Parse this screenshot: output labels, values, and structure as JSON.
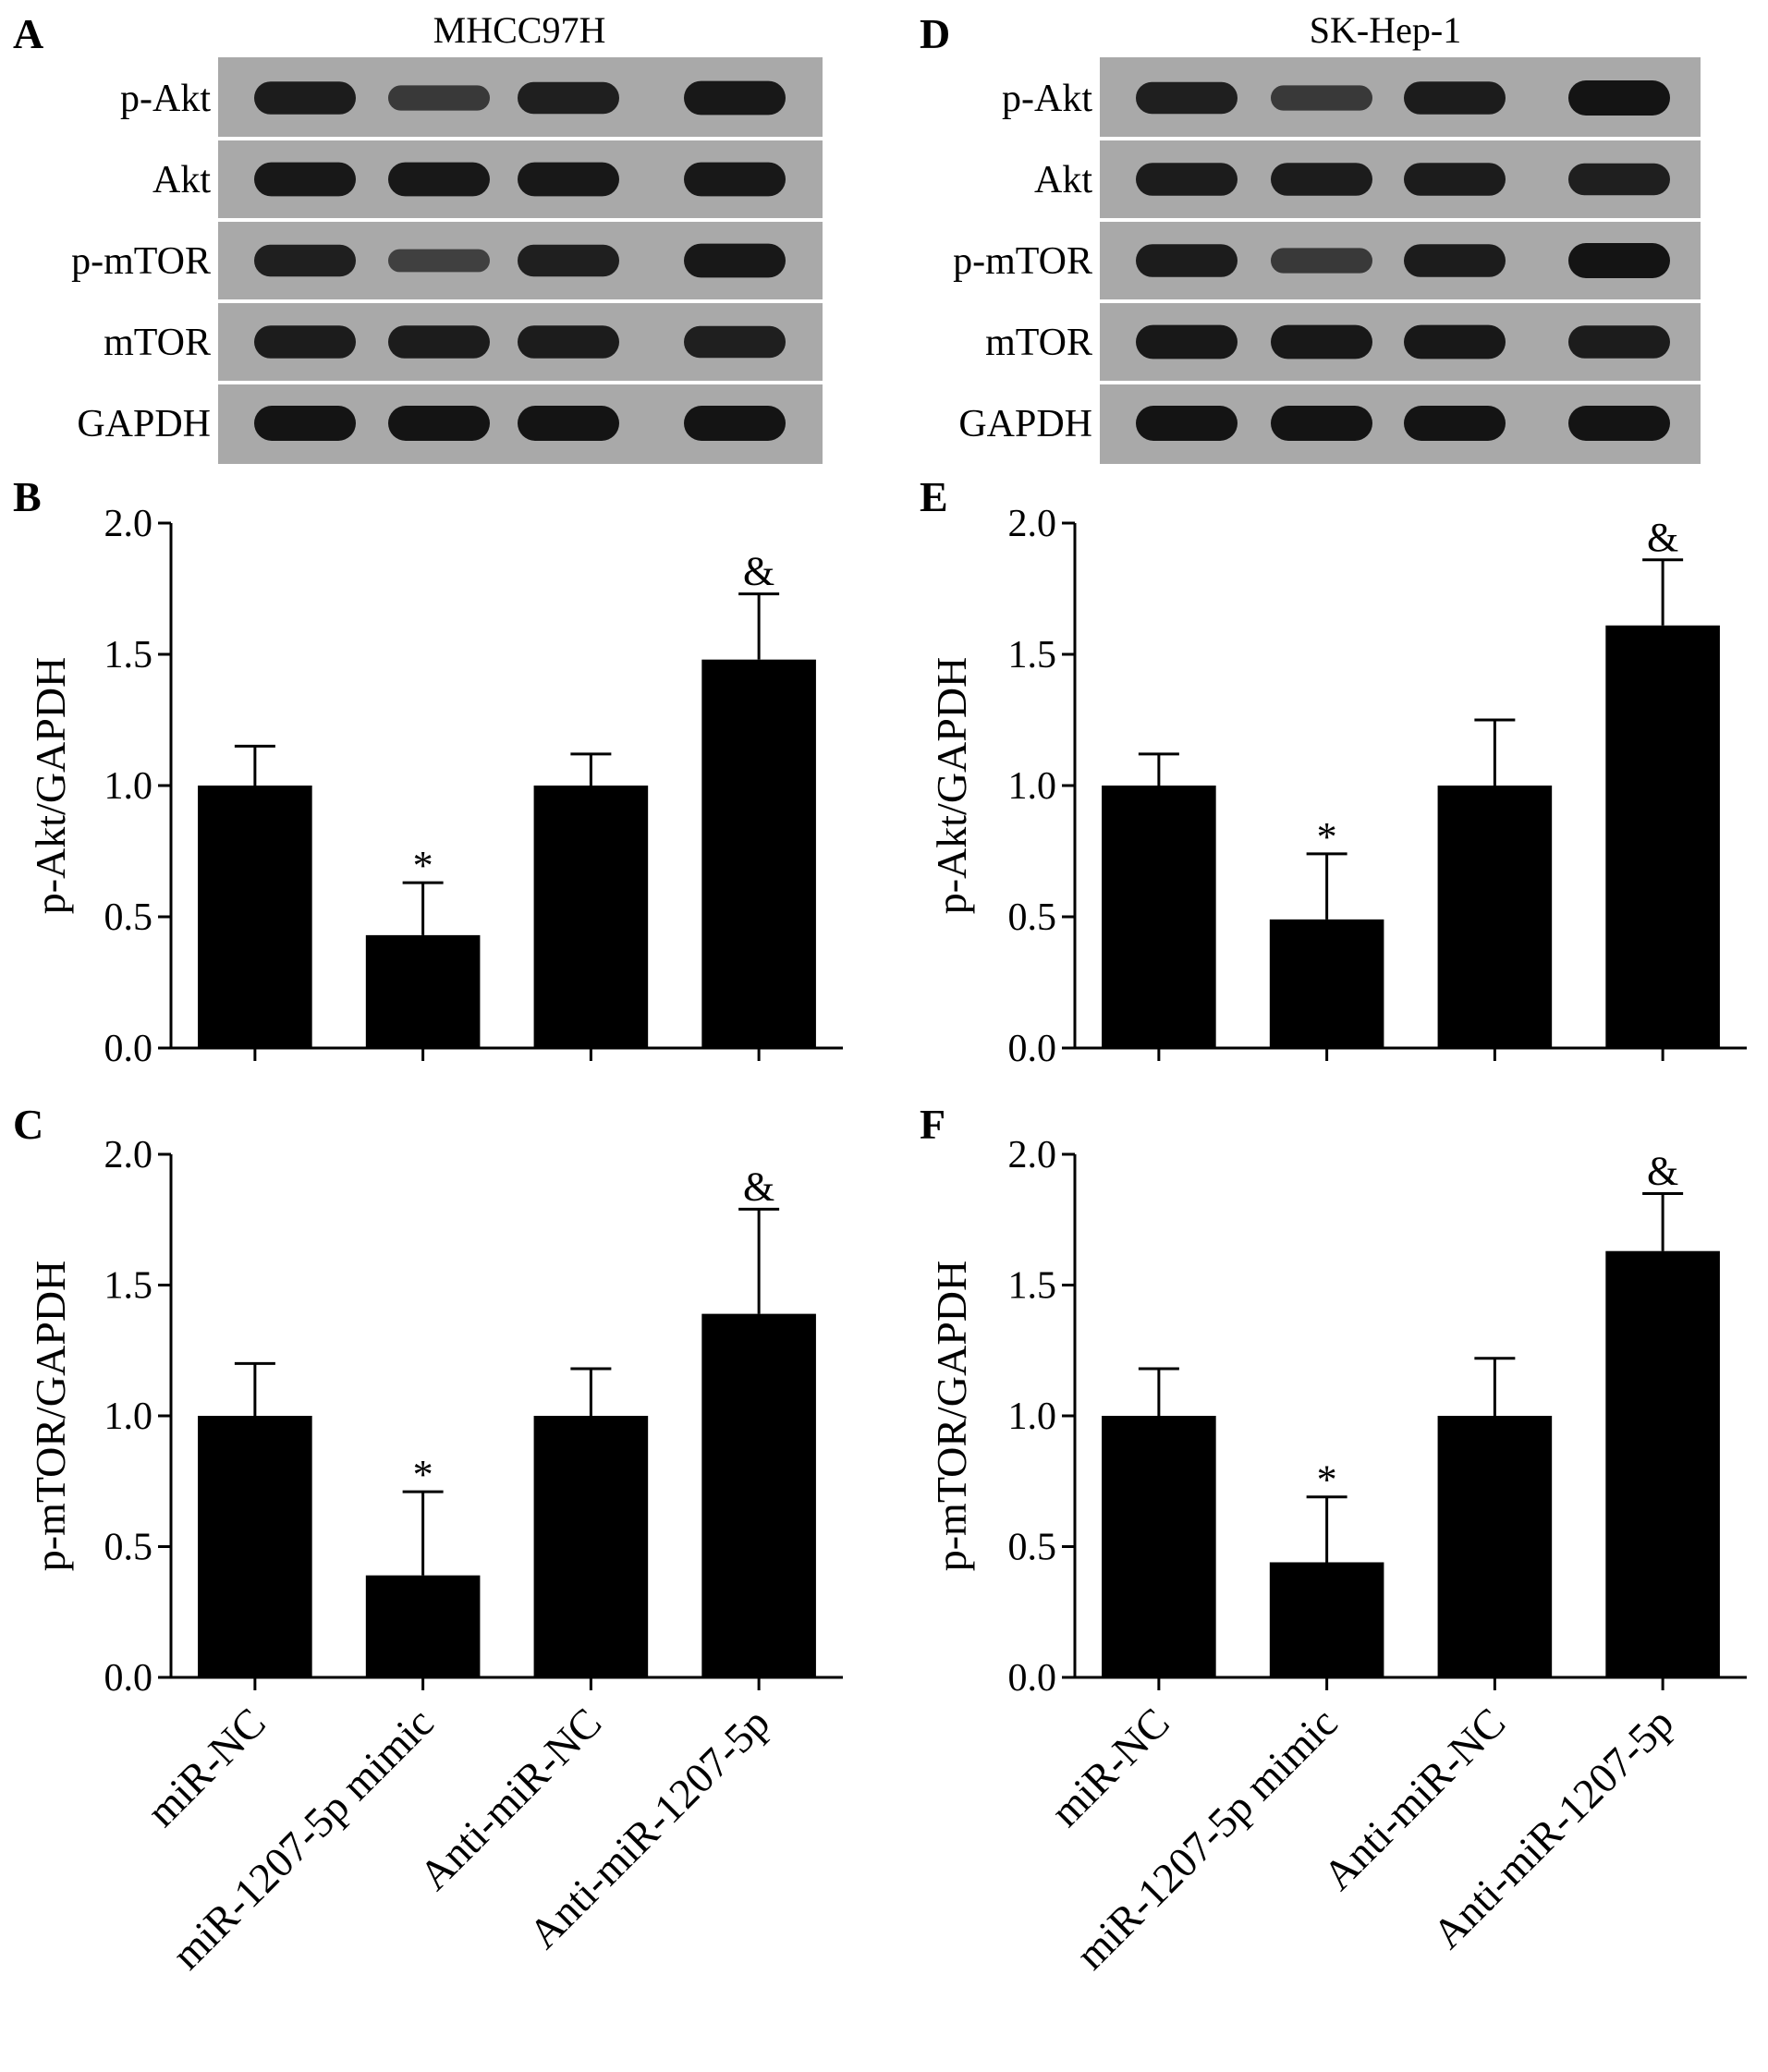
{
  "colors": {
    "bar_fill": "#000000",
    "blot_background": "#a9a9a9",
    "band": "#141414",
    "separator": "#ffffff"
  },
  "categories": [
    "miR-NC",
    "miR-1207-5p mimic",
    "Anti-miR-NC",
    "Anti-miR-1207-5p"
  ],
  "blots": [
    {
      "panel": "A",
      "cell_line": "MHCC97H",
      "rows": [
        {
          "label": "p-Akt",
          "intensity": [
            0.9,
            0.55,
            0.85,
            0.95
          ]
        },
        {
          "label": "Akt",
          "intensity": [
            0.95,
            0.95,
            0.95,
            0.95
          ]
        },
        {
          "label": "p-mTOR",
          "intensity": [
            0.85,
            0.45,
            0.85,
            0.95
          ]
        },
        {
          "label": "mTOR",
          "intensity": [
            0.9,
            0.9,
            0.9,
            0.85
          ]
        },
        {
          "label": "GAPDH",
          "intensity": [
            1.0,
            1.0,
            1.0,
            1.0
          ]
        }
      ]
    },
    {
      "panel": "D",
      "cell_line": "SK-Hep-1",
      "rows": [
        {
          "label": "p-Akt",
          "intensity": [
            0.85,
            0.55,
            0.9,
            1.0
          ]
        },
        {
          "label": "Akt",
          "intensity": [
            0.9,
            0.9,
            0.9,
            0.85
          ]
        },
        {
          "label": "p-mTOR",
          "intensity": [
            0.9,
            0.55,
            0.9,
            1.0
          ]
        },
        {
          "label": "mTOR",
          "intensity": [
            0.95,
            0.95,
            0.95,
            0.9
          ]
        },
        {
          "label": "GAPDH",
          "intensity": [
            1.0,
            1.0,
            1.0,
            1.0
          ]
        }
      ]
    }
  ],
  "chart_data": [
    {
      "panel": "B",
      "type": "bar",
      "categories": [
        "miR-NC",
        "miR-1207-5p mimic",
        "Anti-miR-NC",
        "Anti-miR-1207-5p"
      ],
      "values": [
        1.0,
        0.43,
        1.0,
        1.48
      ],
      "errors": [
        0.15,
        0.2,
        0.12,
        0.25
      ],
      "significance": [
        "",
        "*",
        "",
        "&"
      ],
      "ylabel": "p-Akt/GAPDH",
      "ylim": [
        0.0,
        2.0
      ],
      "yticks": [
        "0.0",
        "0.5",
        "1.0",
        "1.5",
        "2.0"
      ]
    },
    {
      "panel": "C",
      "type": "bar",
      "categories": [
        "miR-NC",
        "miR-1207-5p mimic",
        "Anti-miR-NC",
        "Anti-miR-1207-5p"
      ],
      "values": [
        1.0,
        0.39,
        1.0,
        1.39
      ],
      "errors": [
        0.2,
        0.32,
        0.18,
        0.4
      ],
      "significance": [
        "",
        "*",
        "",
        "&"
      ],
      "ylabel": "p-mTOR/GAPDH",
      "ylim": [
        0.0,
        2.0
      ],
      "yticks": [
        "0.0",
        "0.5",
        "1.0",
        "1.5",
        "2.0"
      ]
    },
    {
      "panel": "E",
      "type": "bar",
      "categories": [
        "miR-NC",
        "miR-1207-5p mimic",
        "Anti-miR-NC",
        "Anti-miR-1207-5p"
      ],
      "values": [
        1.0,
        0.49,
        1.0,
        1.61
      ],
      "errors": [
        0.12,
        0.25,
        0.25,
        0.25
      ],
      "significance": [
        "",
        "*",
        "",
        "&"
      ],
      "ylabel": "p-Akt/GAPDH",
      "ylim": [
        0.0,
        2.0
      ],
      "yticks": [
        "0.0",
        "0.5",
        "1.0",
        "1.5",
        "2.0"
      ]
    },
    {
      "panel": "F",
      "type": "bar",
      "categories": [
        "miR-NC",
        "miR-1207-5p mimic",
        "Anti-miR-NC",
        "Anti-miR-1207-5p"
      ],
      "values": [
        1.0,
        0.44,
        1.0,
        1.63
      ],
      "errors": [
        0.18,
        0.25,
        0.22,
        0.22
      ],
      "significance": [
        "",
        "*",
        "",
        "&"
      ],
      "ylabel": "p-mTOR/GAPDH",
      "ylim": [
        0.0,
        2.0
      ],
      "yticks": [
        "0.0",
        "0.5",
        "1.0",
        "1.5",
        "2.0"
      ]
    }
  ]
}
